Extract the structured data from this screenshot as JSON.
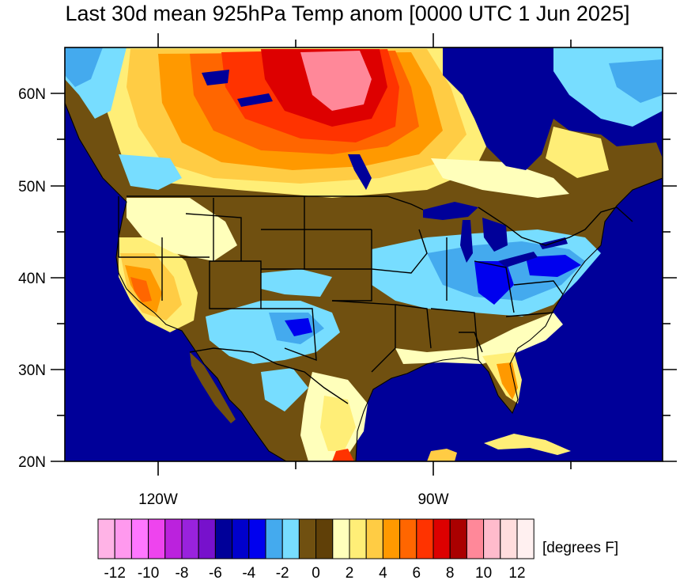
{
  "title": "Last 30d mean 925hPa Temp anom [0000 UTC 1 Jun 2025]",
  "lat_labels": [
    "60N",
    "50N",
    "40N",
    "30N",
    "20N"
  ],
  "lon_labels": [
    "120W",
    "90W"
  ],
  "colorbar": {
    "units_label": "[degrees F]",
    "tick_labels": [
      "-12",
      "-10",
      "-8",
      "-6",
      "-4",
      "-2",
      "0",
      "2",
      "4",
      "6",
      "8",
      "10",
      "12"
    ],
    "colors": [
      "#ffb3e6",
      "#ff99ee",
      "#ff77ff",
      "#ee44ee",
      "#bb22dd",
      "#9922dd",
      "#7711cc",
      "#000099",
      "#0000cc",
      "#0000ee",
      "#44aaee",
      "#77ddff",
      "#705010",
      "#604008",
      "#ffffbb",
      "#ffee77",
      "#ffcc44",
      "#ff9900",
      "#ff6600",
      "#ff3300",
      "#dd0000",
      "#aa0000",
      "#ff8899",
      "#ffbbcc",
      "#ffdddd",
      "#fff0f0"
    ]
  },
  "map_colors": {
    "ocean": "#000099",
    "land_neutral": "#705010",
    "cool": "#77ddff",
    "cooler": "#44aaee",
    "cold": "#0000ee",
    "warm_light": "#ffffbb",
    "warm_yellow": "#ffee77",
    "warm_orange": "#ffcc44",
    "orange": "#ff9900",
    "dark_orange": "#ff6600",
    "red": "#ff3300",
    "dark_red": "#dd0000",
    "pink": "#ff8899"
  }
}
